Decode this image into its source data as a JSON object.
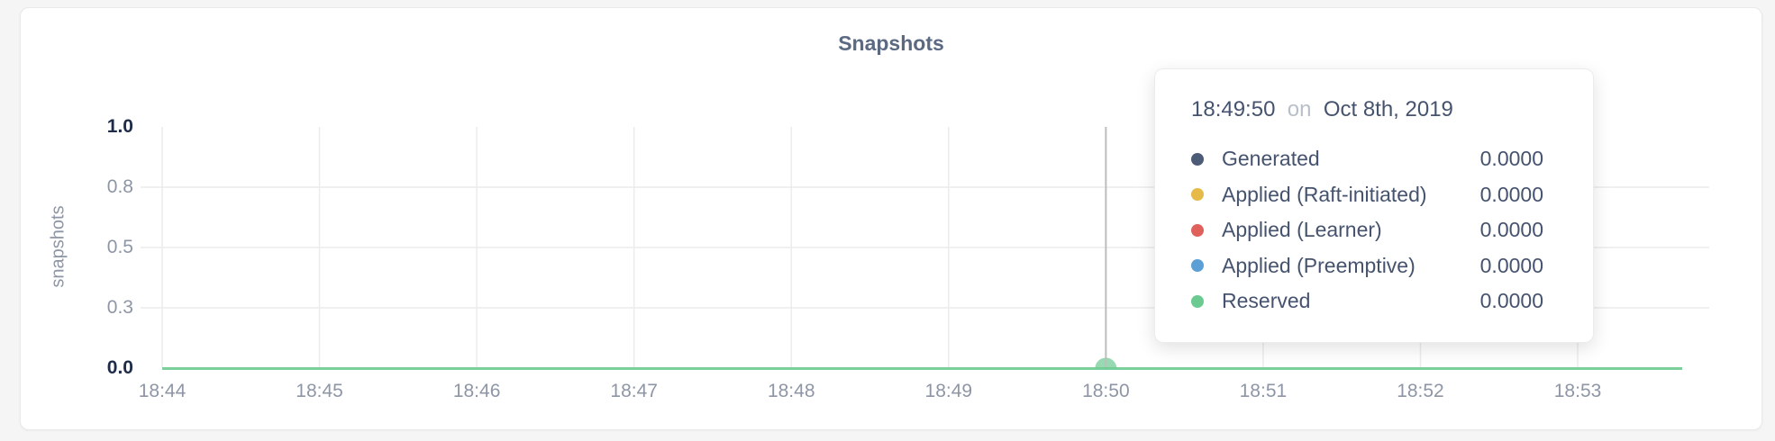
{
  "chart_data": {
    "type": "line",
    "title": "Snapshots",
    "ylabel": "snapshots",
    "x_ticks": [
      "18:44",
      "18:45",
      "18:46",
      "18:47",
      "18:48",
      "18:49",
      "18:50",
      "18:51",
      "18:52",
      "18:53"
    ],
    "y_ticks": [
      {
        "label": "0.0",
        "strong": true
      },
      {
        "label": "0.3",
        "strong": false
      },
      {
        "label": "0.5",
        "strong": false
      },
      {
        "label": "0.8",
        "strong": false
      },
      {
        "label": "1.0",
        "strong": true
      }
    ],
    "ylim": [
      0,
      1.0
    ],
    "grid": true,
    "legend_position": "tooltip",
    "series": [
      {
        "name": "Generated",
        "color": "#4c5b76",
        "values": [
          0,
          0,
          0,
          0,
          0,
          0,
          0,
          0,
          0,
          0
        ]
      },
      {
        "name": "Applied (Raft-initiated)",
        "color": "#e5ba48",
        "values": [
          0,
          0,
          0,
          0,
          0,
          0,
          0,
          0,
          0,
          0
        ]
      },
      {
        "name": "Applied (Learner)",
        "color": "#e0615c",
        "values": [
          0,
          0,
          0,
          0,
          0,
          0,
          0,
          0,
          0,
          0
        ]
      },
      {
        "name": "Applied (Preemptive)",
        "color": "#5a9fd5",
        "values": [
          0,
          0,
          0,
          0,
          0,
          0,
          0,
          0,
          0,
          0
        ]
      },
      {
        "name": "Reserved",
        "color": "#6bca90",
        "values": [
          0,
          0,
          0,
          0,
          0,
          0,
          0,
          0,
          0,
          0
        ]
      }
    ],
    "hover_point": {
      "x_label": "18:50",
      "time": "18:49:50",
      "value": 0
    }
  },
  "tooltip": {
    "time": "18:49:50",
    "conjunction": "on",
    "date": "Oct 8th, 2019",
    "rows": [
      {
        "label": "Generated",
        "value": "0.0000",
        "color": "#4c5b76"
      },
      {
        "label": "Applied (Raft-initiated)",
        "value": "0.0000",
        "color": "#e5ba48"
      },
      {
        "label": "Applied (Learner)",
        "value": "0.0000",
        "color": "#e0615c"
      },
      {
        "label": "Applied (Preemptive)",
        "value": "0.0000",
        "color": "#5a9fd5"
      },
      {
        "label": "Reserved",
        "value": "0.0000",
        "color": "#6bca90"
      }
    ]
  },
  "colors": {
    "title": "#5b6983",
    "axis_strong": "#1e2c48",
    "axis_muted": "#8e96a6",
    "gridline": "#ececec",
    "hover_line": "#bcbebd"
  }
}
